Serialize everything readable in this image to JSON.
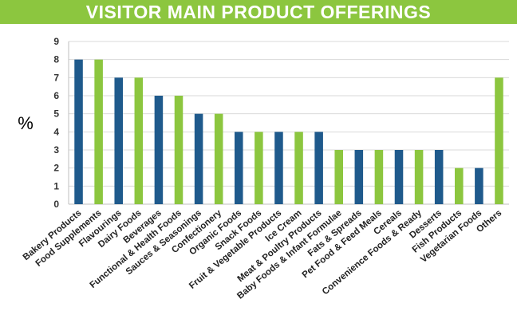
{
  "colors": {
    "banner": "#8cc63f",
    "blue": "#1f5a8c",
    "green": "#8cc63f",
    "grid": "#d9d9d9",
    "axis": "#bfbfbf"
  },
  "chart_data": {
    "type": "bar",
    "title": "VISITOR MAIN PRODUCT OFFERINGS",
    "ylabel": "%",
    "xlabel": "",
    "ylim": [
      0,
      9
    ],
    "yticks": [
      0,
      1,
      2,
      3,
      4,
      5,
      6,
      7,
      8,
      9
    ],
    "grid": true,
    "categories": [
      "Bakery Products",
      "Food Supplements",
      "Flavourings",
      "Dairy Foods",
      "Beverages",
      "Functional & Health Foods",
      "Sauces & Seasonings",
      "Confectionery",
      "Organic Foods",
      "Snack Foods",
      "Fruit & Vegetable Products",
      "Ice Cream",
      "Meat & Poultry Products",
      "Baby Foods & Infant Formulae",
      "Fats & Spreads",
      "Pet Food & Feed Meals",
      "Cereals",
      "Convenience Foods & Ready",
      "Desserts",
      "Fish Products",
      "Vegetarian Foods",
      "Others"
    ],
    "values": [
      8,
      8,
      7,
      7,
      6,
      6,
      5,
      5,
      4,
      4,
      4,
      4,
      4,
      3,
      3,
      3,
      3,
      3,
      3,
      2,
      2,
      7
    ],
    "bar_colors": [
      "blue",
      "green",
      "blue",
      "green",
      "blue",
      "green",
      "blue",
      "green",
      "blue",
      "green",
      "blue",
      "green",
      "blue",
      "green",
      "blue",
      "green",
      "blue",
      "green",
      "blue",
      "green",
      "blue",
      "green"
    ]
  }
}
